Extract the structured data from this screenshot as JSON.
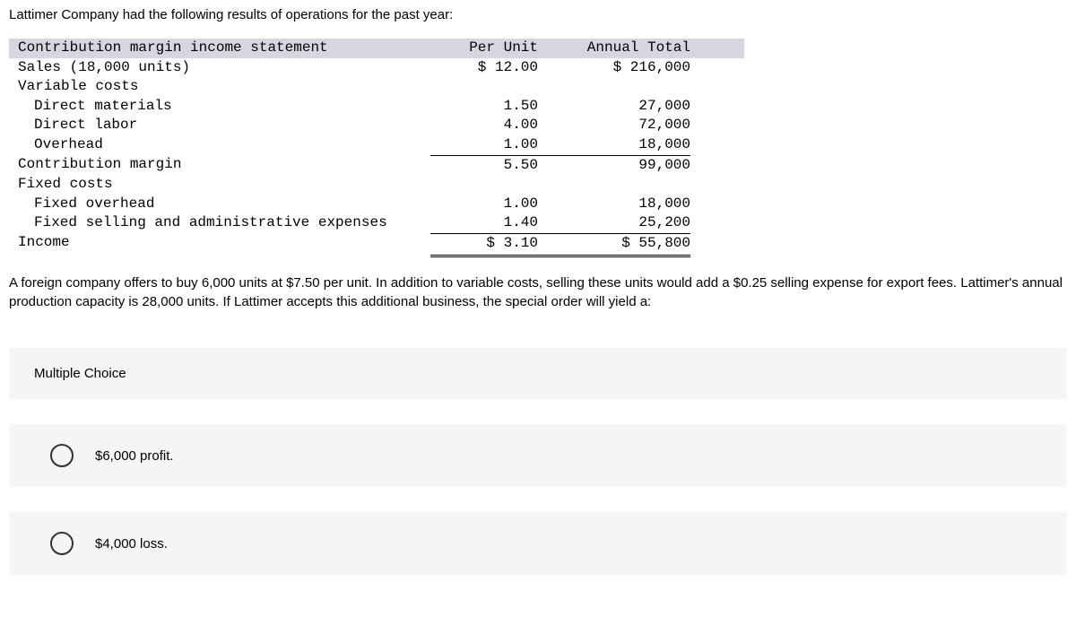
{
  "intro": "Lattimer Company had the following results of operations for the past year:",
  "statement": {
    "headers": {
      "label": "Contribution margin income statement",
      "unit": "Per Unit",
      "total": "Annual Total"
    },
    "rows": [
      {
        "label": "Sales (18,000 units)",
        "indent": 1,
        "unit": "$ 12.00",
        "total": "$ 216,000"
      },
      {
        "label": "Variable costs",
        "indent": 1,
        "unit": "",
        "total": ""
      },
      {
        "label": "Direct materials",
        "indent": 2,
        "unit": "1.50",
        "total": "27,000"
      },
      {
        "label": "Direct labor",
        "indent": 2,
        "unit": "4.00",
        "total": "72,000"
      },
      {
        "label": "Overhead",
        "indent": 2,
        "unit": "1.00",
        "total": "18,000"
      },
      {
        "label": "Contribution margin",
        "indent": 1,
        "unit": "5.50",
        "total": "99,000",
        "topline": true
      },
      {
        "label": "Fixed costs",
        "indent": 1,
        "unit": "",
        "total": ""
      },
      {
        "label": "Fixed overhead",
        "indent": 2,
        "unit": "1.00",
        "total": "18,000"
      },
      {
        "label": "Fixed selling and administrative expenses",
        "indent": 2,
        "unit": "1.40",
        "total": "25,200"
      },
      {
        "label": "Income",
        "indent": 1,
        "unit": "$ 3.10",
        "total": "$ 55,800",
        "topline": true,
        "dbl": true
      }
    ]
  },
  "paragraph": "A foreign company offers to buy 6,000 units at $7.50 per unit. In addition to variable costs, selling these units would add a $0.25 selling expense for export fees. Lattimer's annual production capacity is 28,000 units. If Lattimer accepts this additional business, the special order will yield a:",
  "mcLabel": "Multiple Choice",
  "choices": [
    "$6,000 profit.",
    "$4,000 loss."
  ]
}
